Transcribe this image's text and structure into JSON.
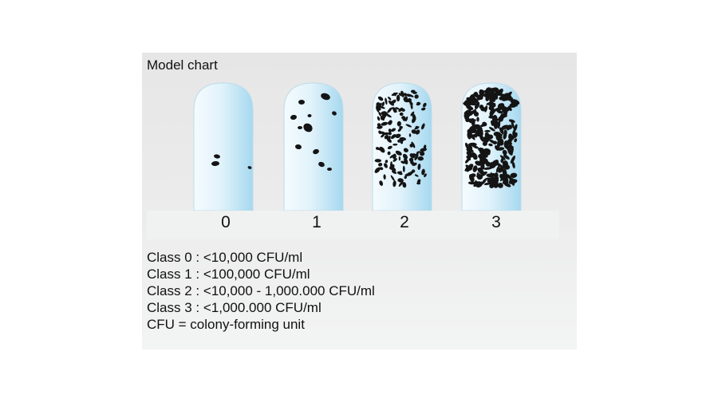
{
  "title": "Model chart",
  "tubes": [
    {
      "label": "0",
      "density": 0
    },
    {
      "label": "1",
      "density": 1
    },
    {
      "label": "2",
      "density": 2
    },
    {
      "label": "3",
      "density": 3
    }
  ],
  "legend": [
    "Class 0 : <10,000 CFU/ml",
    "Class 1 : <100,000 CFU/ml",
    "Class 2 : <10,000 - 1,000.000 CFU/ml",
    "Class 3 : <1,000.000 CFU/ml",
    "CFU = colony-forming unit"
  ],
  "colors": {
    "tube_light": "#f3fbfe",
    "tube_dark": "#9fd6ee",
    "colony": "#141414"
  }
}
